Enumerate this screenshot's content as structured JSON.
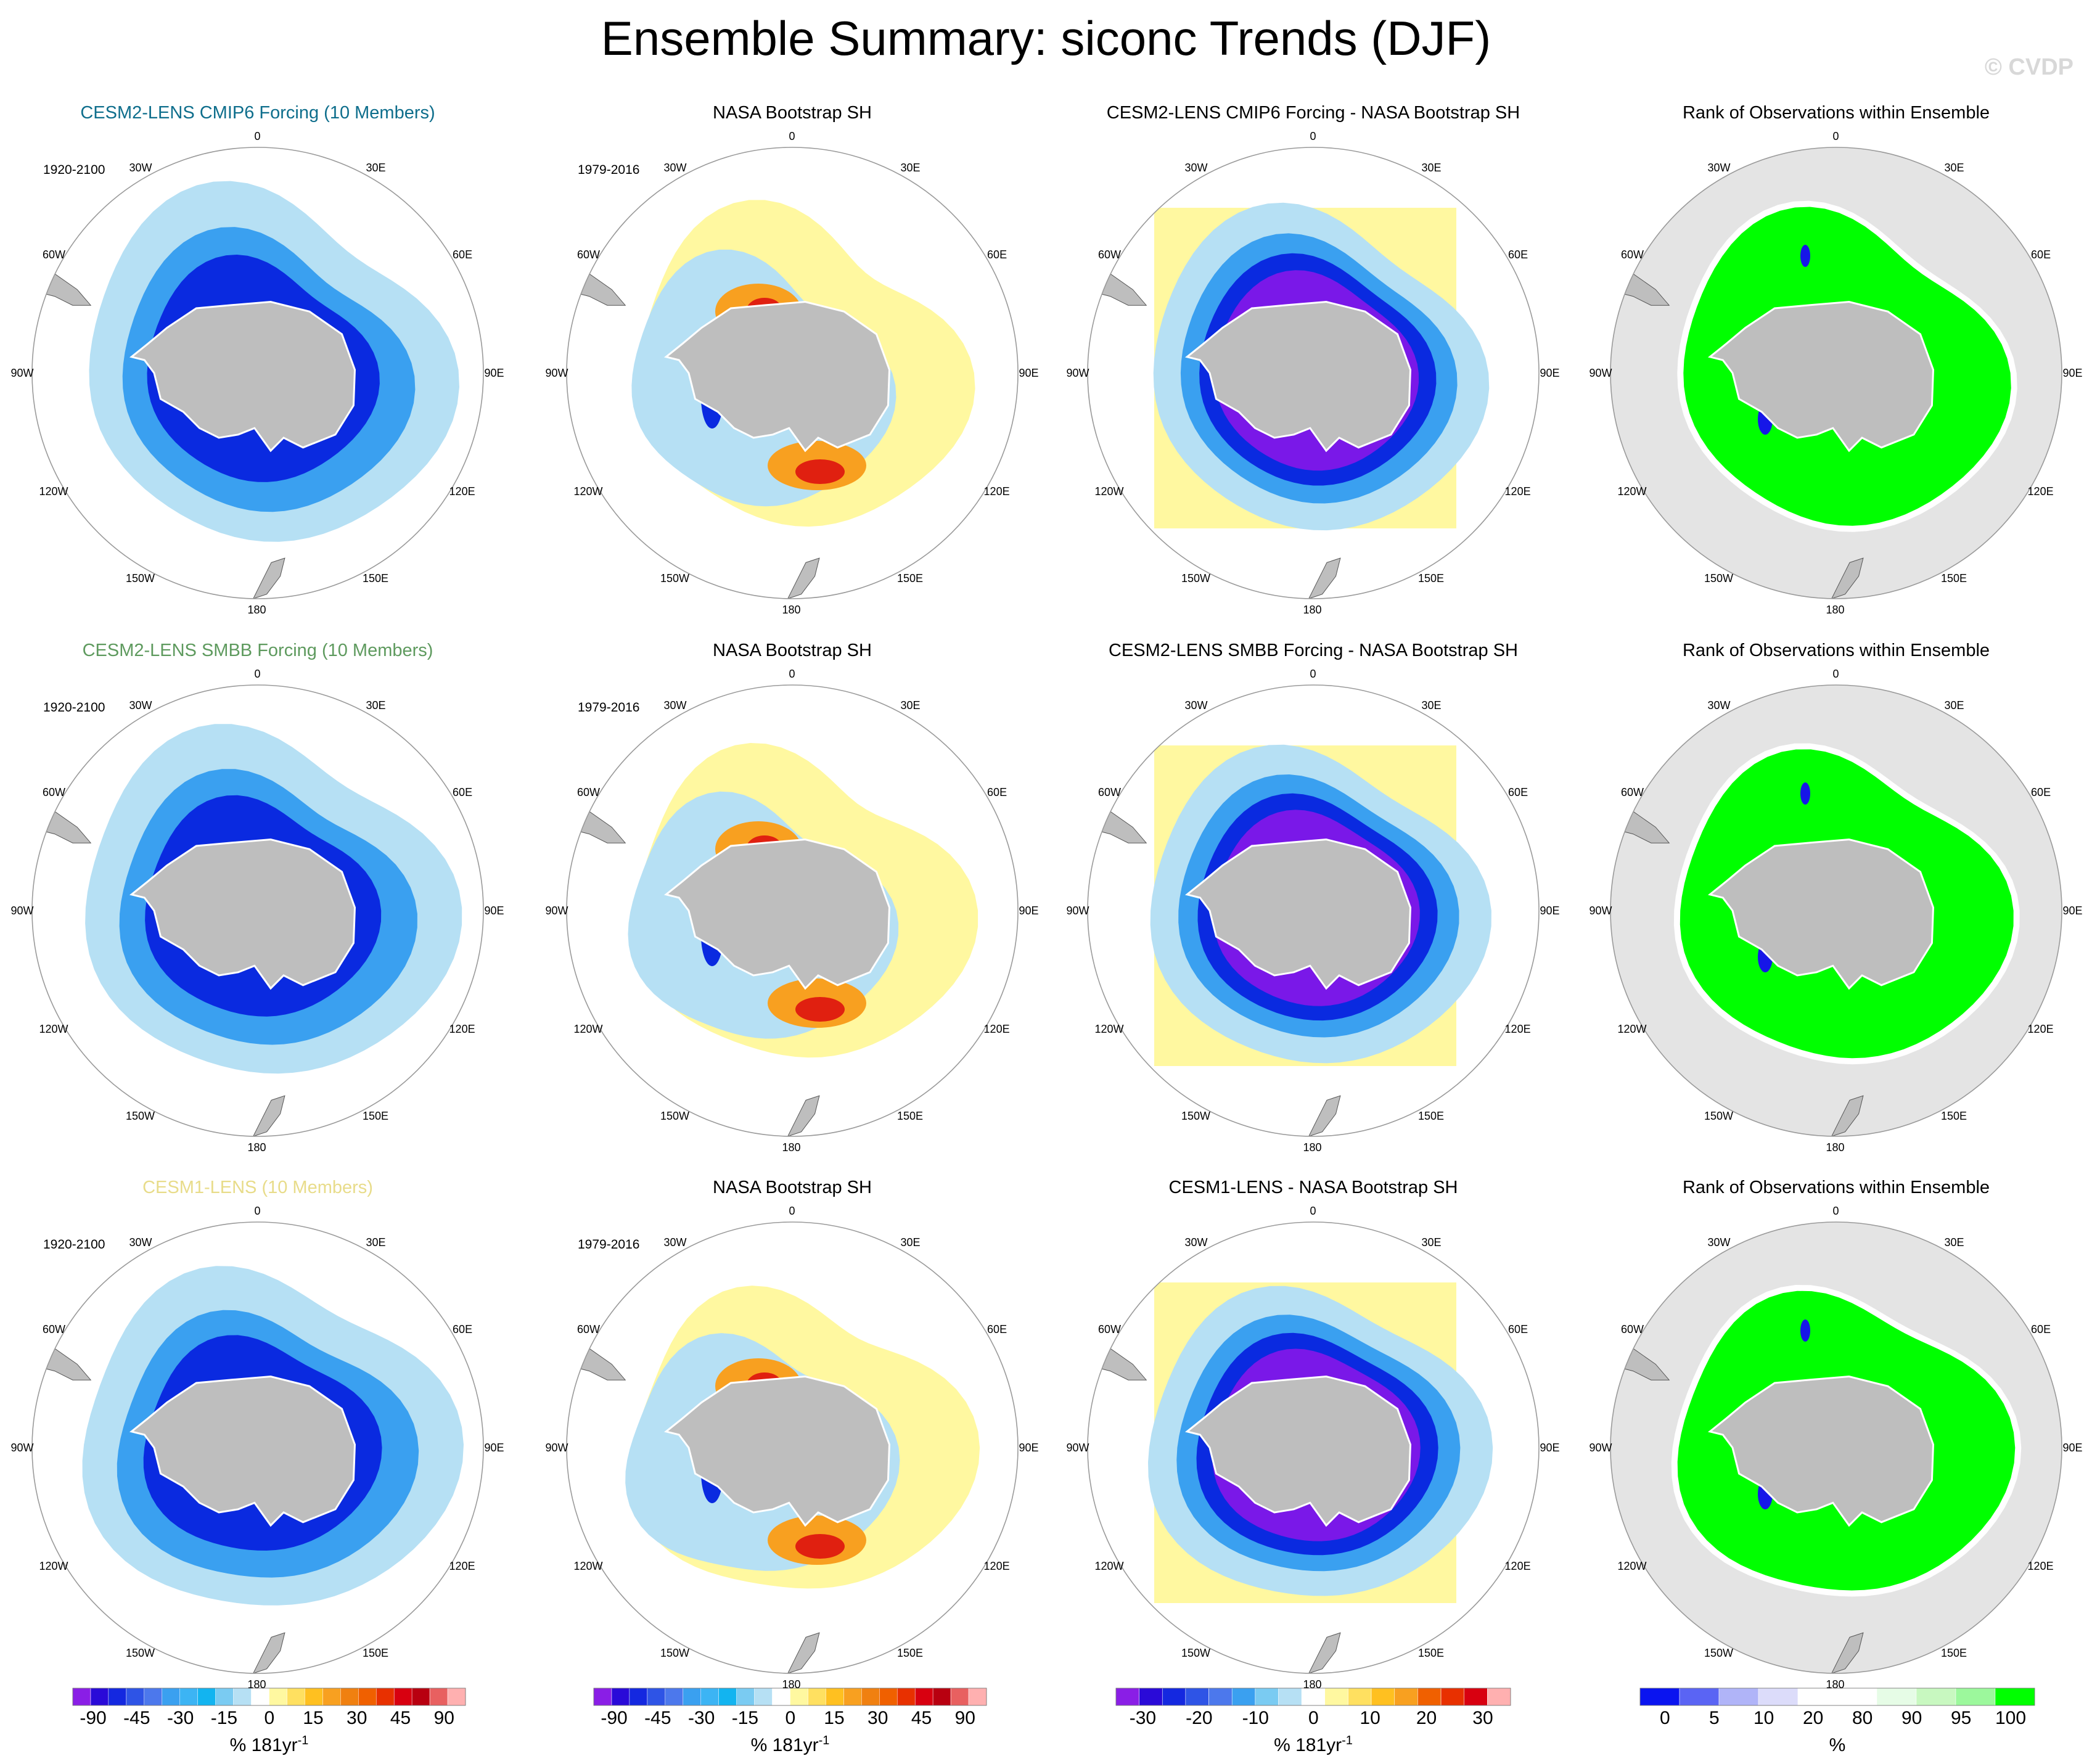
{
  "title": "Ensemble Summary: siconc Trends (DJF)",
  "credit": "© CVDP",
  "colors": {
    "land": "#bebebe",
    "rank_background": "#e4e4e4",
    "rank_high": "#00ff00",
    "rank_low": "#1616e8",
    "diff_fill": "#fff8a0",
    "trend_light": "#b6e0f4",
    "trend_mid": "#3aa0f0",
    "trend_dark": "#0a2ae0",
    "trend_deep": "#7a18e8",
    "obs_warm": "#f8a020",
    "obs_hot": "#e02010"
  },
  "longitude_labels": [
    "0",
    "30E",
    "60E",
    "90E",
    "120E",
    "150E",
    "180",
    "150W",
    "120W",
    "90W",
    "60W",
    "30W"
  ],
  "rows": [
    {
      "model_label": "CESM2-LENS CMIP6 Forcing (10 Members)",
      "model_label_color": "#0e6e8c",
      "model_period": "1920-2100",
      "obs_label": "NASA Bootstrap SH",
      "obs_period": "1979-2016",
      "diff_label": "CESM2-LENS CMIP6 Forcing - NASA Bootstrap SH",
      "rank_label": "Rank of Observations within Ensemble"
    },
    {
      "model_label": "CESM2-LENS SMBB Forcing (10 Members)",
      "model_label_color": "#5e9a5e",
      "model_period": "1920-2100",
      "obs_label": "NASA Bootstrap SH",
      "obs_period": "1979-2016",
      "diff_label": "CESM2-LENS SMBB Forcing - NASA Bootstrap SH",
      "rank_label": "Rank of Observations within Ensemble"
    },
    {
      "model_label": "CESM1-LENS (10 Members)",
      "model_label_color": "#e8dc8a",
      "model_period": "1920-2100",
      "obs_label": "NASA Bootstrap SH",
      "obs_period": "1979-2016",
      "diff_label": "CESM1-LENS - NASA Bootstrap SH",
      "rank_label": "Rank of Observations within Ensemble"
    }
  ],
  "colorbars": {
    "trend": {
      "colors": [
        "#8a1ee6",
        "#2a0ad8",
        "#1428e0",
        "#2e54e6",
        "#4c78ec",
        "#3aa0f0",
        "#3cb4f4",
        "#12b4f0",
        "#7acbf2",
        "#b6e0f4",
        "#ffffff",
        "#fff8a0",
        "#ffe060",
        "#ffc020",
        "#f8a020",
        "#f08010",
        "#f06000",
        "#e83000",
        "#d80010",
        "#b80010",
        "#e86060",
        "#ffb0b0"
      ],
      "ticks": [
        "-90",
        "-45",
        "-30",
        "-15",
        "0",
        "15",
        "30",
        "45",
        "90"
      ],
      "unit": "% 181yr",
      "unit_sup": "-1"
    },
    "obs": {
      "colors": [
        "#8a1ee6",
        "#2a0ad8",
        "#1428e0",
        "#2e54e6",
        "#4c78ec",
        "#3aa0f0",
        "#3cb4f4",
        "#12b4f0",
        "#7acbf2",
        "#b6e0f4",
        "#ffffff",
        "#fff8a0",
        "#ffe060",
        "#ffc020",
        "#f8a020",
        "#f08010",
        "#f06000",
        "#e83000",
        "#d80010",
        "#b80010",
        "#e86060",
        "#ffb0b0"
      ],
      "ticks": [
        "-90",
        "-45",
        "-30",
        "-15",
        "0",
        "15",
        "30",
        "45",
        "90"
      ],
      "unit": "% 181yr",
      "unit_sup": "-1"
    },
    "diff": {
      "colors": [
        "#8a1ee6",
        "#2a0ad8",
        "#1428e0",
        "#2e54e6",
        "#4c78ec",
        "#3aa0f0",
        "#7acbf2",
        "#b6e0f4",
        "#ffffff",
        "#fff8a0",
        "#ffe060",
        "#ffc020",
        "#f8a020",
        "#f06000",
        "#e83000",
        "#d80010",
        "#ffb0b0"
      ],
      "ticks": [
        "-30",
        "-20",
        "-10",
        "0",
        "10",
        "20",
        "30"
      ],
      "unit": "% 181yr",
      "unit_sup": "-1"
    },
    "rank": {
      "colors": [
        "#0a14f0",
        "#5a64f4",
        "#b0b4f8",
        "#dcdcfa",
        "#ffffff",
        "#ffffff",
        "#e6fce6",
        "#c8f8c0",
        "#9cf89c",
        "#00ff00"
      ],
      "ticks": [
        "0",
        "5",
        "10",
        "20",
        "80",
        "90",
        "95",
        "100"
      ],
      "unit": "%",
      "unit_sup": ""
    }
  },
  "chart_data": {
    "type": "heatmap",
    "title": "Ensemble Summary: siconc Trends (DJF)",
    "variable": "siconc",
    "season": "DJF",
    "projection": "South polar stereographic",
    "units": "% 181yr-1",
    "rows": [
      {
        "model": "CESM2-LENS CMIP6 Forcing (10 Members)",
        "model_period": "1920-2100",
        "observations": "NASA Bootstrap SH",
        "obs_period": "1979-2016",
        "difference": "CESM2-LENS CMIP6 Forcing - NASA Bootstrap SH",
        "rank_panel": "Rank of Observations within Ensemble"
      },
      {
        "model": "CESM2-LENS SMBB Forcing (10 Members)",
        "model_period": "1920-2100",
        "observations": "NASA Bootstrap SH",
        "obs_period": "1979-2016",
        "difference": "CESM2-LENS SMBB Forcing - NASA Bootstrap SH",
        "rank_panel": "Rank of Observations within Ensemble"
      },
      {
        "model": "CESM1-LENS (10 Members)",
        "model_period": "1920-2100",
        "observations": "NASA Bootstrap SH",
        "obs_period": "1979-2016",
        "difference": "CESM1-LENS - NASA Bootstrap SH",
        "rank_panel": "Rank of Observations within Ensemble"
      }
    ],
    "colorbar_ticks": {
      "trend": [
        -90,
        -45,
        -30,
        -15,
        0,
        15,
        30,
        45,
        90
      ],
      "observations": [
        -90,
        -45,
        -30,
        -15,
        0,
        15,
        30,
        45,
        90
      ],
      "difference": [
        -30,
        -20,
        -10,
        0,
        10,
        20,
        30
      ],
      "rank_percent": [
        0,
        5,
        10,
        20,
        80,
        90,
        95,
        100
      ]
    }
  }
}
